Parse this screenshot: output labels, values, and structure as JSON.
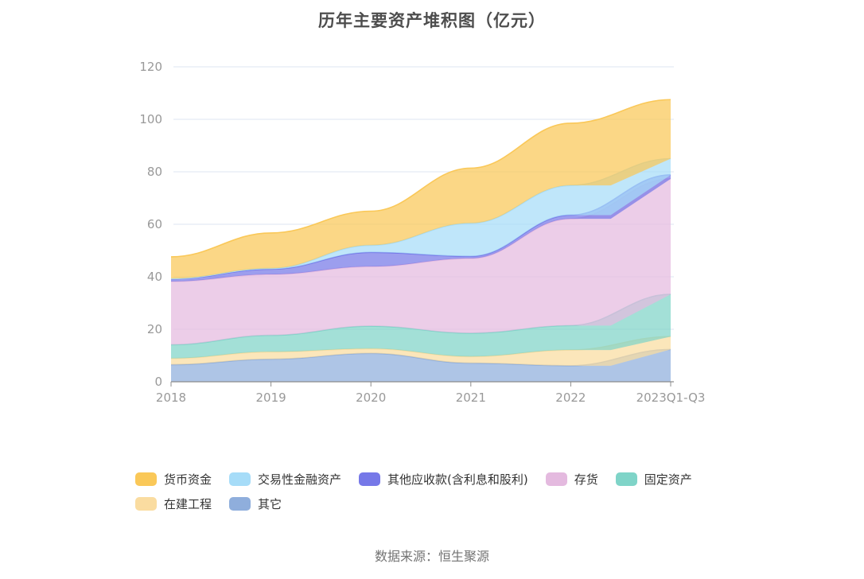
{
  "header": {
    "title": "历年主要资产堆积图（亿元）"
  },
  "footer": {
    "source": "数据来源：恒生聚源"
  },
  "colors": {
    "grid": "#e4e9f4",
    "axis_line": "#8c8c8c",
    "axis_label": "#999999",
    "title_text": "#4d4d4d",
    "legend_text": "#333333"
  },
  "chart_data": {
    "type": "area",
    "stacked": true,
    "smooth": true,
    "title": "历年主要资产堆积图（亿元）",
    "xlabel": "",
    "ylabel": "",
    "ylim": [
      0,
      120
    ],
    "yticks": [
      0,
      20,
      40,
      60,
      80,
      100,
      120
    ],
    "grid": true,
    "legend_position": "bottom",
    "area_opacity": 0.72,
    "stack_order": "last-series-at-bottom",
    "categories": [
      "2018",
      "2019",
      "2020",
      "2021",
      "2022",
      "2023Q1-Q3"
    ],
    "series": [
      {
        "key": "monetary-funds",
        "name": "货币资金",
        "color": "#FAC858",
        "values": [
          8.3,
          13.5,
          13.0,
          21.0,
          23.7,
          22.5
        ]
      },
      {
        "key": "trading-financial-assets",
        "name": "交易性金融资产",
        "color": "#A6DCF8",
        "values": [
          0.1,
          0.3,
          2.7,
          12.6,
          11.3,
          6.2
        ]
      },
      {
        "key": "other-receivables",
        "name": "其他应收款(含利息和股利)",
        "color": "#7678E8",
        "values": [
          1.0,
          2.0,
          5.4,
          0.8,
          1.4,
          1.5
        ]
      },
      {
        "key": "inventory",
        "name": "存货",
        "color": "#E4BADF",
        "values": [
          24.1,
          23.2,
          22.7,
          28.5,
          40.7,
          44.0
        ]
      },
      {
        "key": "fixed-assets",
        "name": "固定资产",
        "color": "#7FD4C8",
        "values": [
          5.2,
          6.3,
          8.6,
          8.9,
          9.3,
          16.1
        ]
      },
      {
        "key": "construction-in-progress",
        "name": "在建工程",
        "color": "#FADCA0",
        "values": [
          2.4,
          2.8,
          1.8,
          2.5,
          6.0,
          4.9
        ]
      },
      {
        "key": "others",
        "name": "其它",
        "color": "#8FAEDC",
        "values": [
          6.5,
          8.6,
          10.8,
          7.1,
          6.1,
          12.3
        ]
      }
    ]
  }
}
